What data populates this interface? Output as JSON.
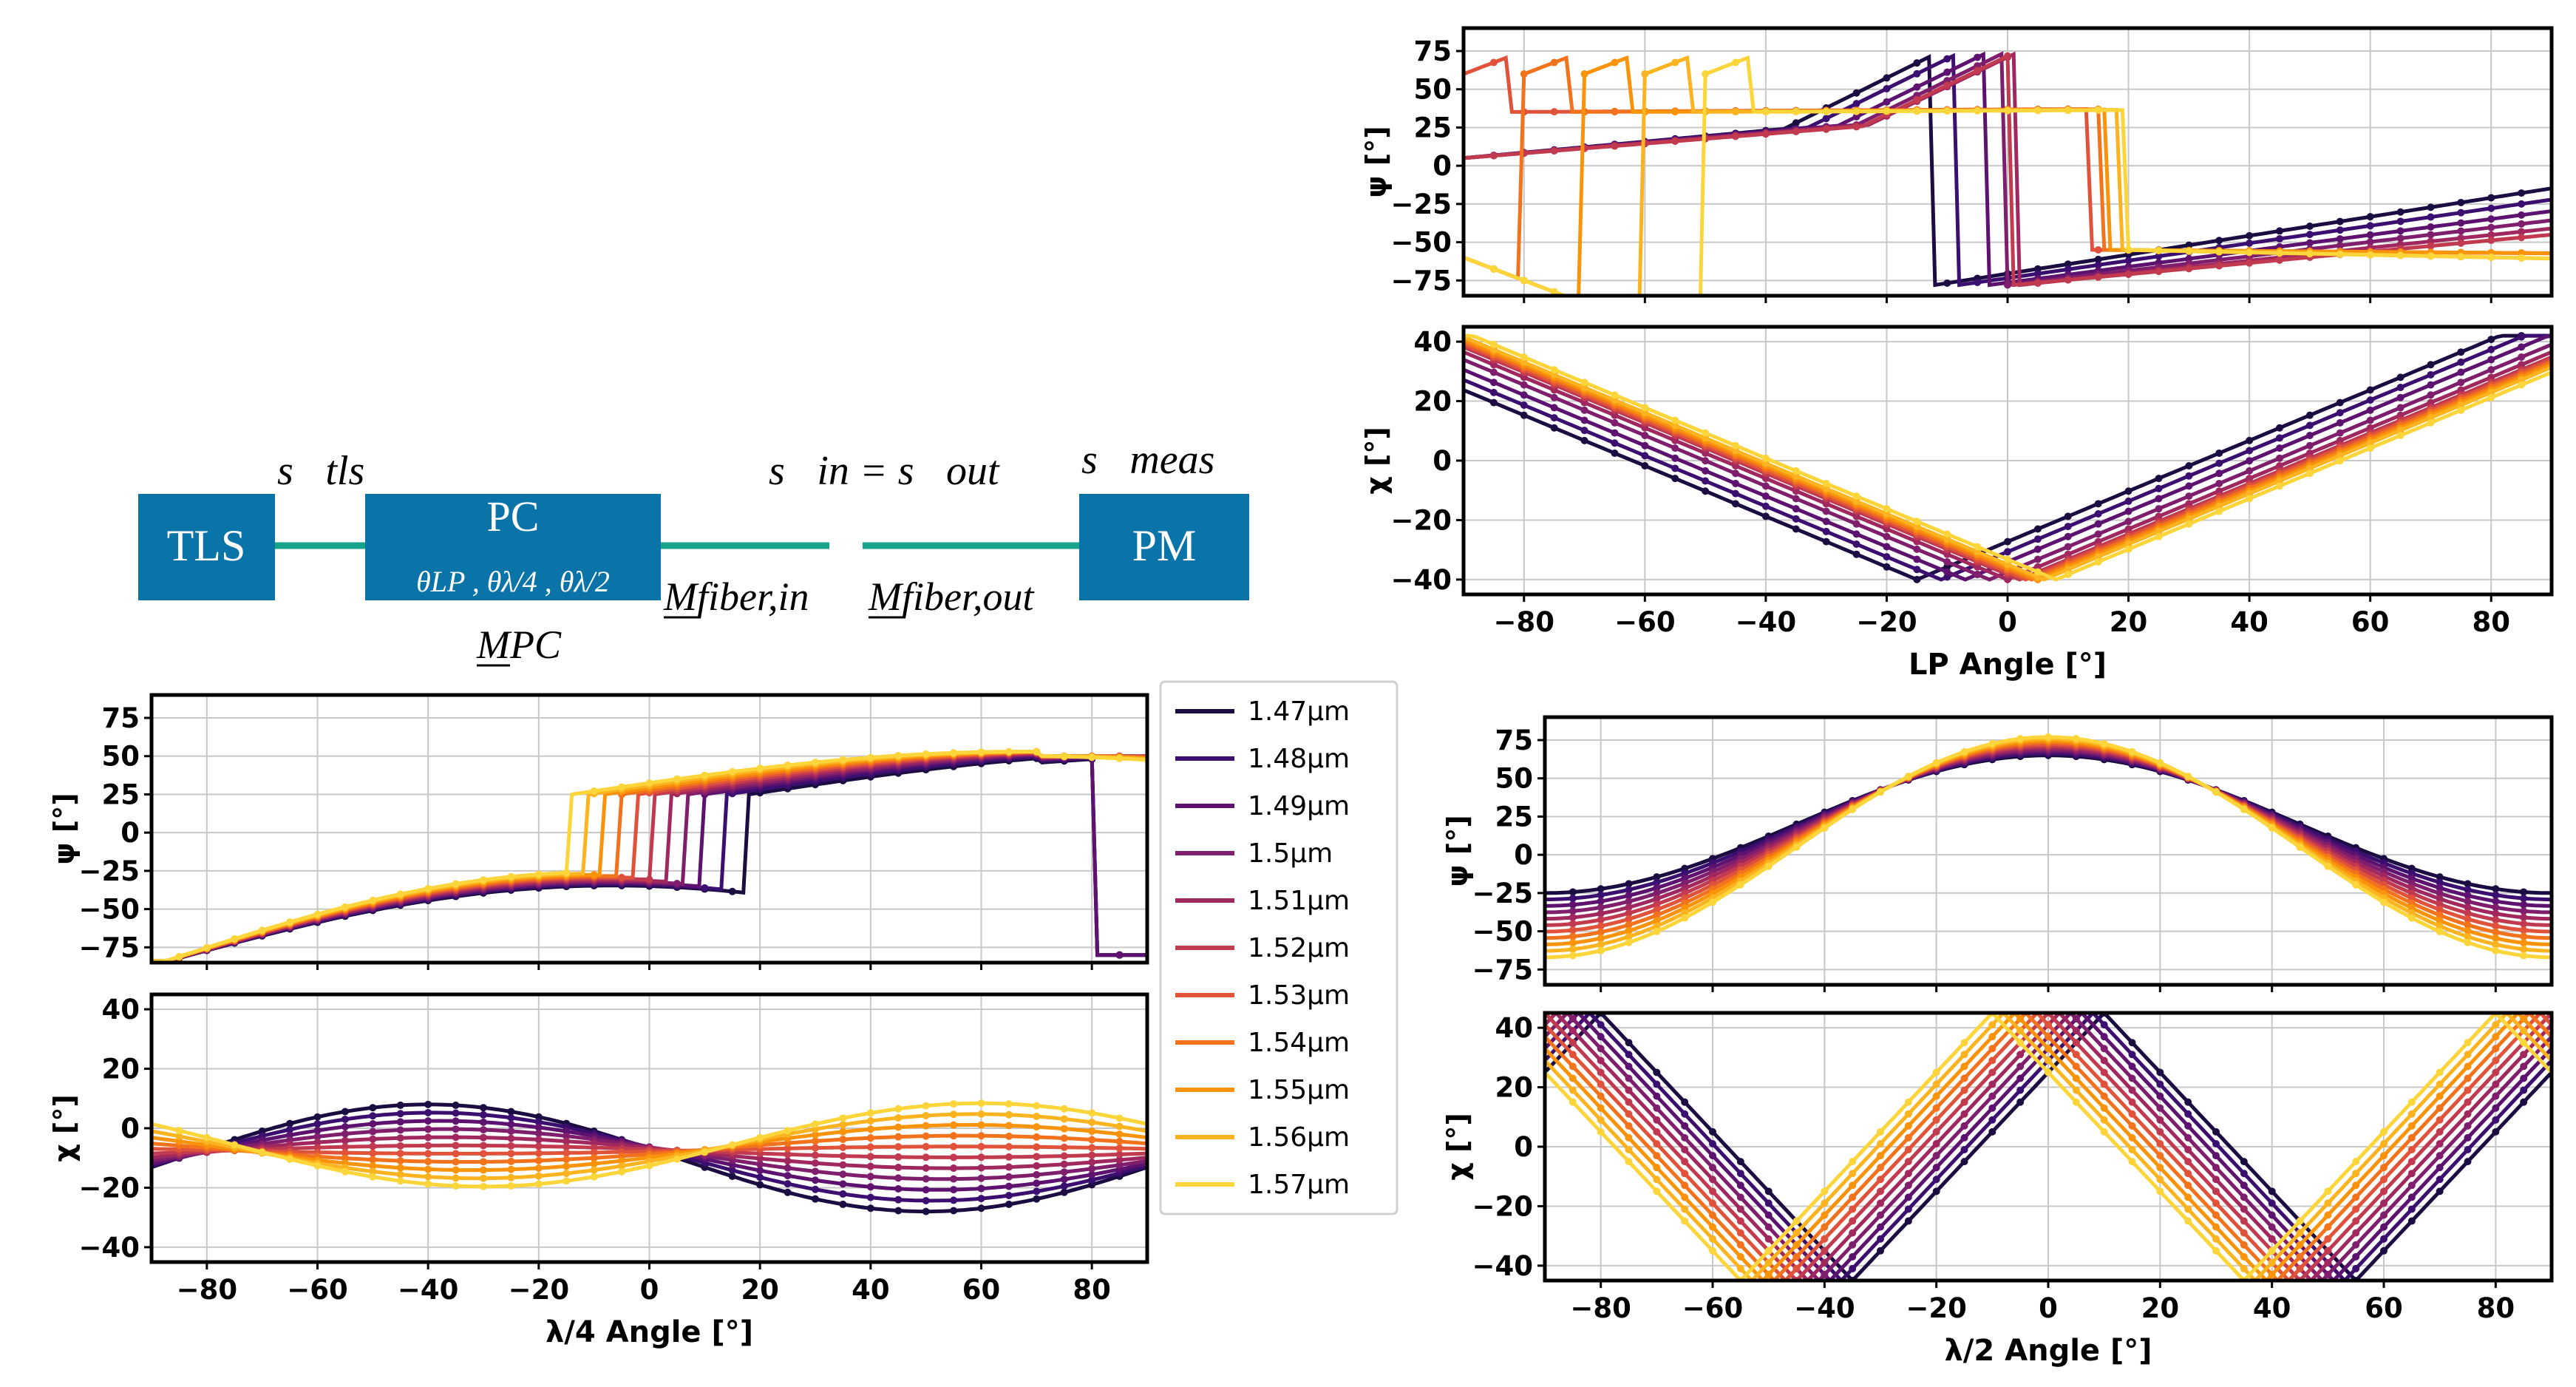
{
  "diagram": {
    "box_tls": "TLS",
    "box_pc": "PC",
    "box_pm": "PM",
    "label_s_tls": "s⃗tls",
    "label_s_in_out": "s⃗in = s⃗out",
    "label_s_meas": "s⃗meas",
    "pc_angles": "θLP , θλ/4 , θλ/2",
    "label_m_pc": "MPC",
    "label_m_fiber_in": "Mfiber,in",
    "label_m_fiber_out": "Mfiber,out",
    "box_color": "#0a73a8",
    "fiber_color": "#16a38a"
  },
  "legend": {
    "entries": [
      "1.47µm",
      "1.48µm",
      "1.49µm",
      "1.5µm",
      "1.51µm",
      "1.52µm",
      "1.53µm",
      "1.54µm",
      "1.55µm",
      "1.56µm",
      "1.57µm"
    ],
    "colors": [
      "#1b0c41",
      "#3b0f70",
      "#5c126e",
      "#7e1e6c",
      "#a1275f",
      "#c23a4f",
      "#e0533a",
      "#f2731c",
      "#f9930a",
      "#fbb41f",
      "#fcd53a"
    ]
  },
  "chart_data": [
    {
      "id": "lp_psi",
      "type": "line",
      "title": "",
      "xlabel": "",
      "ylabel": "ψ [°]",
      "xlim": [
        -90,
        90
      ],
      "ylim": [
        -85,
        90
      ],
      "xticks": [
        -80,
        -60,
        -40,
        -20,
        0,
        20,
        40,
        60,
        80
      ],
      "xtick_labels": [],
      "yticks": [
        75,
        50,
        25,
        0,
        -25,
        -50,
        -75
      ],
      "ytick_labels": [
        "75",
        "50",
        "25",
        "0",
        "−25",
        "−50",
        "−75"
      ],
      "grid": true,
      "model": "lp_psi",
      "series_params": [
        -12,
        -8,
        -3,
        0,
        2,
        1,
        -50,
        -70,
        -80,
        -82,
        -84
      ],
      "series_names": [
        "1.47µm",
        "1.48µm",
        "1.49µm",
        "1.5µm",
        "1.51µm",
        "1.52µm",
        "1.53µm",
        "1.54µm",
        "1.55µm",
        "1.56µm",
        "1.57µm"
      ]
    },
    {
      "id": "lp_chi",
      "type": "line",
      "title": "",
      "xlabel": "LP Angle [°]",
      "ylabel": "χ [°]",
      "xlim": [
        -90,
        90
      ],
      "ylim": [
        -45,
        45
      ],
      "xticks": [
        -80,
        -60,
        -40,
        -20,
        0,
        20,
        40,
        60,
        80
      ],
      "xtick_labels": [
        "−80",
        "−60",
        "−40",
        "−20",
        "0",
        "20",
        "40",
        "60",
        "80"
      ],
      "yticks": [
        40,
        20,
        0,
        -20,
        -40
      ],
      "ytick_labels": [
        "40",
        "20",
        "0",
        "−20",
        "−40"
      ],
      "grid": true,
      "model": "lp_chi",
      "series_params": [
        -15,
        -11,
        -7,
        -3,
        0,
        2,
        3,
        4,
        5,
        6,
        8
      ],
      "series_names": [
        "1.47µm",
        "1.48µm",
        "1.49µm",
        "1.5µm",
        "1.51µm",
        "1.52µm",
        "1.53µm",
        "1.54µm",
        "1.55µm",
        "1.56µm",
        "1.57µm"
      ]
    },
    {
      "id": "q_psi",
      "type": "line",
      "title": "",
      "xlabel": "",
      "ylabel": "ψ [°]",
      "xlim": [
        -90,
        90
      ],
      "ylim": [
        -85,
        90
      ],
      "xticks": [
        -80,
        -60,
        -40,
        -20,
        0,
        20,
        40,
        60,
        80
      ],
      "xtick_labels": [],
      "yticks": [
        75,
        50,
        25,
        0,
        -25,
        -50,
        -75
      ],
      "ytick_labels": [
        "75",
        "50",
        "25",
        "0",
        "−25",
        "−50",
        "−75"
      ],
      "grid": true,
      "model": "q_psi",
      "series_params": [
        18,
        14,
        10,
        7,
        4,
        1,
        -2,
        -5,
        -8,
        -11,
        -14
      ],
      "series_names": [
        "1.47µm",
        "1.48µm",
        "1.49µm",
        "1.5µm",
        "1.51µm",
        "1.52µm",
        "1.53µm",
        "1.54µm",
        "1.55µm",
        "1.56µm",
        "1.57µm"
      ]
    },
    {
      "id": "q_chi",
      "type": "line",
      "title": "",
      "xlabel": "λ/4 Angle [°]",
      "ylabel": "χ [°]",
      "xlim": [
        -90,
        90
      ],
      "ylim": [
        -45,
        45
      ],
      "xticks": [
        -80,
        -60,
        -40,
        -20,
        0,
        20,
        40,
        60,
        80
      ],
      "xtick_labels": [
        "−80",
        "−60",
        "−40",
        "−20",
        "0",
        "20",
        "40",
        "60",
        "80"
      ],
      "yticks": [
        40,
        20,
        0,
        -20,
        -40
      ],
      "ytick_labels": [
        "40",
        "20",
        "0",
        "−20",
        "−40"
      ],
      "grid": true,
      "model": "q_chi",
      "series_params": [
        0.0,
        0.1,
        0.2,
        0.3,
        0.4,
        0.5,
        0.6,
        0.7,
        0.8,
        0.9,
        1.0
      ],
      "series_names": [
        "1.47µm",
        "1.48µm",
        "1.49µm",
        "1.5µm",
        "1.51µm",
        "1.52µm",
        "1.53µm",
        "1.54µm",
        "1.55µm",
        "1.56µm",
        "1.57µm"
      ]
    },
    {
      "id": "h_psi",
      "type": "line",
      "title": "",
      "xlabel": "",
      "ylabel": "ψ [°]",
      "xlim": [
        -90,
        90
      ],
      "ylim": [
        -85,
        90
      ],
      "xticks": [
        -80,
        -60,
        -40,
        -20,
        0,
        20,
        40,
        60,
        80
      ],
      "xtick_labels": [],
      "yticks": [
        75,
        50,
        25,
        0,
        -25,
        -50,
        -75
      ],
      "ytick_labels": [
        "75",
        "50",
        "25",
        "0",
        "−25",
        "−50",
        "−75"
      ],
      "grid": true,
      "model": "h_psi",
      "series_params": [
        0.0,
        0.1,
        0.2,
        0.3,
        0.4,
        0.5,
        0.6,
        0.7,
        0.8,
        0.9,
        1.0
      ],
      "series_names": [
        "1.47µm",
        "1.48µm",
        "1.49µm",
        "1.5µm",
        "1.51µm",
        "1.52µm",
        "1.53µm",
        "1.54µm",
        "1.55µm",
        "1.56µm",
        "1.57µm"
      ]
    },
    {
      "id": "h_chi",
      "type": "line",
      "title": "",
      "xlabel": "λ/2 Angle [°]",
      "ylabel": "χ [°]",
      "xlim": [
        -90,
        90
      ],
      "ylim": [
        -45,
        45
      ],
      "xticks": [
        -80,
        -60,
        -40,
        -20,
        0,
        20,
        40,
        60,
        80
      ],
      "xtick_labels": [
        "−80",
        "−60",
        "−40",
        "−20",
        "0",
        "20",
        "40",
        "60",
        "80"
      ],
      "yticks": [
        40,
        20,
        0,
        -20,
        -40
      ],
      "ytick_labels": [
        "40",
        "20",
        "0",
        "−20",
        "−40"
      ],
      "grid": true,
      "model": "h_chi",
      "series_params": [
        -10,
        -8,
        -6,
        -4,
        -2,
        0,
        2,
        4,
        6,
        8,
        10
      ],
      "series_names": [
        "1.47µm",
        "1.48µm",
        "1.49µm",
        "1.5µm",
        "1.51µm",
        "1.52µm",
        "1.53µm",
        "1.54µm",
        "1.55µm",
        "1.56µm",
        "1.57µm"
      ]
    }
  ]
}
